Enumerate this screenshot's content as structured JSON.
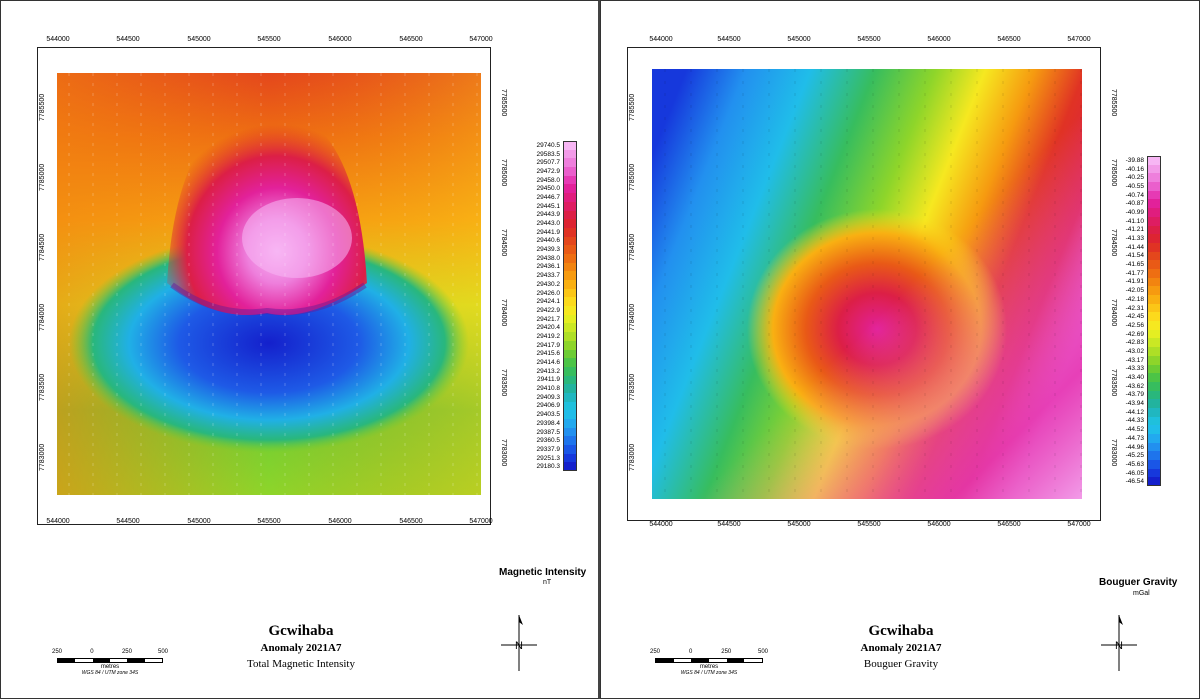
{
  "x_ticks": [
    "544000",
    "544500",
    "545000",
    "545500",
    "546000",
    "546500",
    "547000"
  ],
  "y_ticks": [
    "7783000",
    "7783500",
    "7784000",
    "7784500",
    "7785000",
    "7785500"
  ],
  "left": {
    "title": "Gcwihaba",
    "subtitle": "Anomaly 2021A7",
    "description": "Total Magnetic Intensity",
    "legend_title": "Magnetic Intensity",
    "legend_unit": "nT",
    "legend_values": [
      "29740.5",
      "29583.5",
      "29507.7",
      "29472.9",
      "29458.0",
      "29450.0",
      "29446.7",
      "29445.1",
      "29443.9",
      "29443.0",
      "29441.9",
      "29440.6",
      "29439.3",
      "29438.0",
      "29436.1",
      "29433.7",
      "29430.2",
      "29426.0",
      "29424.1",
      "29422.9",
      "29421.7",
      "29420.4",
      "29419.2",
      "29417.9",
      "29415.6",
      "29414.6",
      "29413.2",
      "29411.9",
      "29410.8",
      "29409.3",
      "29406.9",
      "29403.5",
      "29398.4",
      "29387.5",
      "29360.5",
      "29337.9",
      "29251.3",
      "29180.3"
    ],
    "legend_colors": [
      "#f7b6f4",
      "#f29be8",
      "#ee7fdc",
      "#ea5fcc",
      "#e63ab4",
      "#e2219a",
      "#e01d7e",
      "#de1d62",
      "#dc1f46",
      "#dd2432",
      "#e03324",
      "#e4471c",
      "#e95a16",
      "#ee6e12",
      "#f28410",
      "#f69a10",
      "#f9b012",
      "#fbc617",
      "#fcda1c",
      "#f6e820",
      "#e4ee22",
      "#cae824",
      "#aedf26",
      "#8ed52a",
      "#6ccc34",
      "#4cc446",
      "#37bd5e",
      "#29b77c",
      "#22b39e",
      "#20b7c0",
      "#1fc0dc",
      "#20bde9",
      "#22a9ef",
      "#2290ef",
      "#1e74ec",
      "#1a56e6",
      "#1638dc",
      "#1420cc"
    ]
  },
  "right": {
    "title": "Gcwihaba",
    "subtitle": "Anomaly 2021A7",
    "description": "Bouguer Gravity",
    "legend_title": "Bouguer Gravity",
    "legend_unit": "mGal",
    "legend_values": [
      "-39.88",
      "-40.16",
      "-40.25",
      "-40.55",
      "-40.74",
      "-40.87",
      "-40.99",
      "-41.10",
      "-41.21",
      "-41.33",
      "-41.44",
      "-41.54",
      "-41.65",
      "-41.77",
      "-41.91",
      "-42.05",
      "-42.18",
      "-42.31",
      "-42.45",
      "-42.56",
      "-42.69",
      "-42.83",
      "-43.02",
      "-43.17",
      "-43.33",
      "-43.40",
      "-43.62",
      "-43.79",
      "-43.94",
      "-44.12",
      "-44.33",
      "-44.52",
      "-44.73",
      "-44.96",
      "-45.25",
      "-45.63",
      "-46.05",
      "-46.54"
    ],
    "legend_colors": [
      "#f7b6f4",
      "#f29be8",
      "#ee7fdc",
      "#ea5fcc",
      "#e63ab4",
      "#e2219a",
      "#e01d7e",
      "#de1d62",
      "#dc1f46",
      "#dd2432",
      "#e03324",
      "#e4471c",
      "#e95a16",
      "#ee6e12",
      "#f28410",
      "#f69a10",
      "#f9b012",
      "#fbc617",
      "#fcda1c",
      "#f6e820",
      "#e4ee22",
      "#cae824",
      "#aedf26",
      "#8ed52a",
      "#6ccc34",
      "#4cc446",
      "#37bd5e",
      "#29b77c",
      "#22b39e",
      "#20b7c0",
      "#1fc0dc",
      "#20bde9",
      "#22a9ef",
      "#2290ef",
      "#1e74ec",
      "#1a56e6",
      "#1638dc",
      "#1420cc"
    ]
  },
  "scalebar": {
    "labels": [
      "250",
      "0",
      "250",
      "500"
    ],
    "unit": "metres",
    "projection": "WGS 84 / UTM zone 34S"
  },
  "north_label": "N"
}
